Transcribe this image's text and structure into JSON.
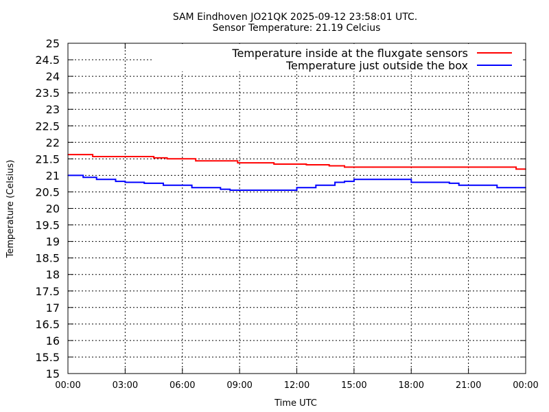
{
  "chart_data": {
    "type": "line",
    "title": "SAM Eindhoven JO21QK 2025-09-12 23:58:01 UTC.",
    "subtitle": "Sensor Temperature: 21.19 Celcius",
    "xlabel": "Time UTC",
    "ylabel": "Temperature (Celsius)",
    "xlim": [
      0,
      24
    ],
    "ylim": [
      15,
      25
    ],
    "grid": true,
    "legend_position": "top-right",
    "x_ticks": [
      {
        "value": 0,
        "label": "00:00"
      },
      {
        "value": 3,
        "label": "03:00"
      },
      {
        "value": 6,
        "label": "06:00"
      },
      {
        "value": 9,
        "label": "09:00"
      },
      {
        "value": 12,
        "label": "12:00"
      },
      {
        "value": 15,
        "label": "15:00"
      },
      {
        "value": 18,
        "label": "18:00"
      },
      {
        "value": 21,
        "label": "21:00"
      },
      {
        "value": 24,
        "label": "00:00"
      }
    ],
    "y_ticks": [
      {
        "value": 15,
        "label": "15"
      },
      {
        "value": 15.5,
        "label": "15.5"
      },
      {
        "value": 16,
        "label": "16"
      },
      {
        "value": 16.5,
        "label": "16.5"
      },
      {
        "value": 17,
        "label": "17"
      },
      {
        "value": 17.5,
        "label": "17.5"
      },
      {
        "value": 18,
        "label": "18"
      },
      {
        "value": 18.5,
        "label": "18.5"
      },
      {
        "value": 19,
        "label": "19"
      },
      {
        "value": 19.5,
        "label": "19.5"
      },
      {
        "value": 20,
        "label": "20"
      },
      {
        "value": 20.5,
        "label": "20.5"
      },
      {
        "value": 21,
        "label": "21"
      },
      {
        "value": 21.5,
        "label": "21.5"
      },
      {
        "value": 22,
        "label": "22"
      },
      {
        "value": 22.5,
        "label": "22.5"
      },
      {
        "value": 23,
        "label": "23"
      },
      {
        "value": 23.5,
        "label": "23.5"
      },
      {
        "value": 24,
        "label": "24"
      },
      {
        "value": 24.5,
        "label": "24.5"
      },
      {
        "value": 25,
        "label": "25"
      }
    ],
    "series": [
      {
        "name": "Temperature inside at the fluxgate sensors",
        "color": "#ff0000",
        "x": [
          0.0,
          0.5,
          1.3,
          3.0,
          4.5,
          5.2,
          6.7,
          7.5,
          8.9,
          10.0,
          10.8,
          11.5,
          12.5,
          13.7,
          14.5,
          16.0,
          18.0,
          20.0,
          22.0,
          23.2,
          23.5,
          24.0
        ],
        "y": [
          21.63,
          21.63,
          21.57,
          21.57,
          21.53,
          21.5,
          21.44,
          21.44,
          21.38,
          21.38,
          21.34,
          21.34,
          21.32,
          21.29,
          21.25,
          21.25,
          21.25,
          21.25,
          21.25,
          21.25,
          21.19,
          21.19
        ]
      },
      {
        "name": "Temperature just outside the box",
        "color": "#0000ff",
        "x": [
          0.0,
          0.8,
          1.5,
          2.5,
          3.0,
          4.0,
          5.0,
          6.5,
          7.0,
          8.0,
          8.5,
          10.0,
          11.5,
          12.0,
          13.0,
          14.0,
          14.5,
          15.0,
          16.0,
          17.0,
          17.5,
          18.0,
          19.0,
          20.0,
          20.5,
          21.0,
          22.0,
          22.5,
          23.0,
          24.0
        ],
        "y": [
          21.0,
          20.94,
          20.88,
          20.82,
          20.79,
          20.76,
          20.7,
          20.63,
          20.63,
          20.58,
          20.55,
          20.55,
          20.55,
          20.63,
          20.7,
          20.79,
          20.82,
          20.88,
          20.88,
          20.88,
          20.88,
          20.79,
          20.79,
          20.76,
          20.7,
          20.7,
          20.7,
          20.63,
          20.63,
          20.63
        ]
      }
    ]
  }
}
